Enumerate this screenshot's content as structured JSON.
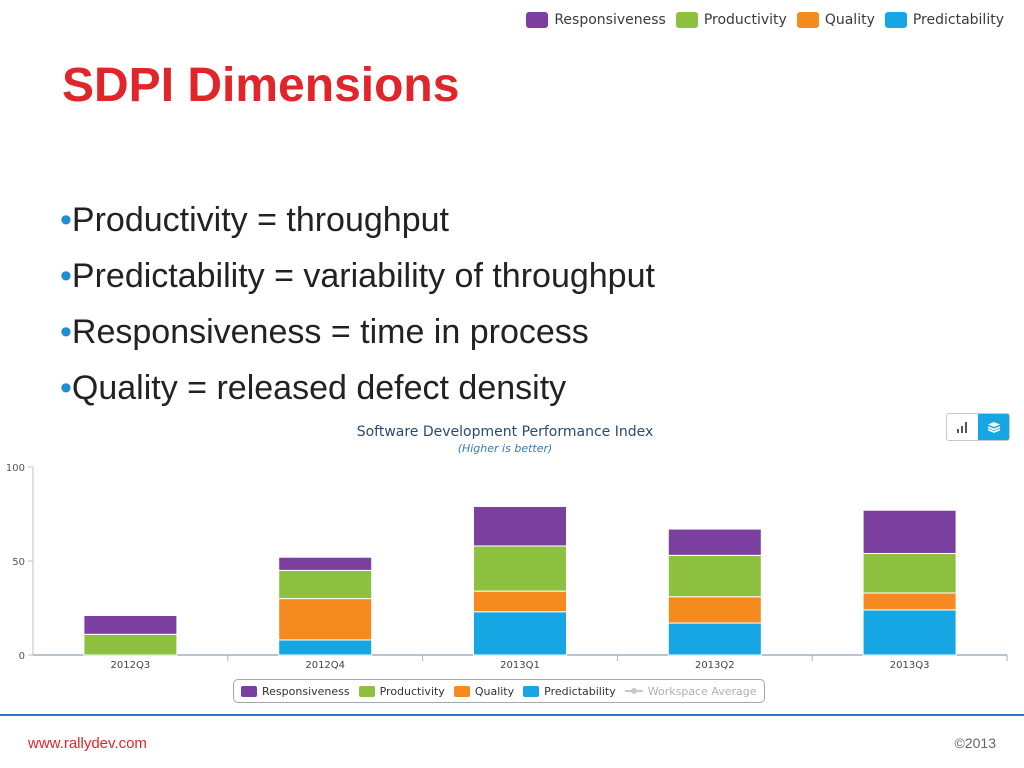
{
  "top_legend": [
    {
      "label": "Responsiveness",
      "color": "#7b3fa0"
    },
    {
      "label": "Productivity",
      "color": "#8dc03f"
    },
    {
      "label": "Quality",
      "color": "#f58a1f"
    },
    {
      "label": "Predictability",
      "color": "#16a6e3"
    }
  ],
  "slide": {
    "title": "SDPI Dimensions",
    "bullets": [
      "Productivity = throughput",
      "Predictability = variability of throughput",
      "Responsiveness = time in process",
      "Quality = released defect density"
    ],
    "bullet_char": "•"
  },
  "view_toggle": {
    "icons": [
      "bar-chart-icon",
      "stack-icon"
    ],
    "active": "stack-icon"
  },
  "chart_data": {
    "type": "bar",
    "stacked": true,
    "title": "Software Development Performance Index",
    "subtitle": "(Higher is better)",
    "categories": [
      "2012Q3",
      "2012Q4",
      "2013Q1",
      "2013Q2",
      "2013Q3"
    ],
    "ylim": [
      0,
      100
    ],
    "yticks": [
      0,
      50,
      100
    ],
    "grid": false,
    "series": [
      {
        "name": "Predictability",
        "color": "#16a6e3",
        "values": [
          0,
          8,
          23,
          17,
          24
        ]
      },
      {
        "name": "Quality",
        "color": "#f58a1f",
        "values": [
          0,
          22,
          11,
          14,
          9
        ]
      },
      {
        "name": "Productivity",
        "color": "#8dc03f",
        "values": [
          11,
          15,
          24,
          22,
          21
        ]
      },
      {
        "name": "Responsiveness",
        "color": "#7b3fa0",
        "values": [
          10,
          7,
          21,
          14,
          23
        ]
      }
    ],
    "legend": {
      "placement": "bottom",
      "items": [
        {
          "label": "Responsiveness",
          "color": "#7b3fa0"
        },
        {
          "label": "Productivity",
          "color": "#8dc03f"
        },
        {
          "label": "Quality",
          "color": "#f58a1f"
        },
        {
          "label": "Predictability",
          "color": "#16a6e3"
        },
        {
          "label": "Workspace Average",
          "color": "#c8c8c8",
          "disabled": true
        }
      ]
    }
  },
  "footer": {
    "url": "www.rallydev.com",
    "copyright": "©2013"
  }
}
